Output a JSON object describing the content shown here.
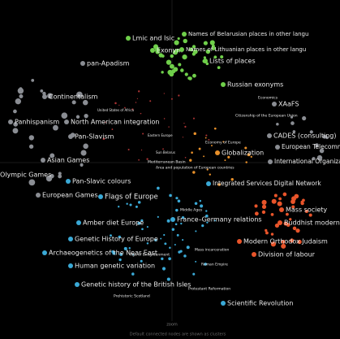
{
  "labels": [
    "Lmic and Isic",
    "Names of Belarusian places in other langu",
    "Exonym",
    "Names of Lithuanian places in other langu",
    "Lists of places",
    "pan-Apadism",
    "Russian exonyms",
    "Continentalism",
    "Economics",
    "XAaFS",
    "Citizenship of the European Union",
    "United States of Africa",
    "Panhispanism",
    "North American integration",
    "Pan-Slavism",
    "Eastern Europe",
    "Economy of Europe",
    "CADES (consulting)",
    "European Telecommunication",
    "Globalization",
    "Sun Belarus",
    "Asian Games",
    "International Organization for Sta",
    "Mediterranean Basin",
    "Area and population of European countries",
    "Olympic Games",
    "Pan-Slavic colours",
    "Integrated Services Digital Network",
    "European Games",
    "Flags of Europe",
    "Middle Ages",
    "Mass society",
    "Amber diet Europe",
    "France–Germany relations",
    "Buddhist modernism",
    "Genetic History of Europe",
    "Modern Orthodox Judaism",
    "Mass incarceration",
    "Archaeogenetics of the Near East",
    "Age of Enlightenment",
    "Division of labour",
    "Roman Empire",
    "Human genetic variation",
    "Genetic history of the British Isles",
    "Protestant Reformation",
    "Prehistoric Scotland",
    "Scientific Revolution"
  ],
  "zoom": "zoom",
  "footer": "Default connected nodes are shown as clusters"
}
